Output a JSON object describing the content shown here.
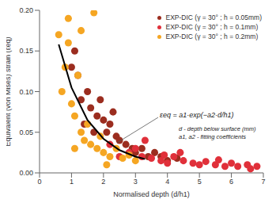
{
  "chart_data": {
    "type": "scatter",
    "x_label": "Normalised depth (d/h1)",
    "y_label": "Equivalent (von Mises) strain (εeq)",
    "xlim": [
      0,
      7
    ],
    "xticks": [
      0,
      1,
      2,
      3,
      4,
      5,
      6,
      7
    ],
    "ylim": [
      0,
      0.2
    ],
    "yticks": [
      {
        "value": 0,
        "label": "0.00"
      },
      {
        "value": 0.05,
        "label": "0.05"
      },
      {
        "value": 0.1,
        "label": "0.10"
      },
      {
        "value": 0.15,
        "label": "0.15"
      },
      {
        "value": 0.2,
        "label": "0.20"
      }
    ],
    "legend": "upper right",
    "annotations": [
      "εeq = a1·exp(−a2·d/h1)",
      "d - depth below surface (mm)",
      "a1, a2 - fitting coefficients"
    ],
    "series": [
      {
        "name": "EXP-DIC (γ = 30° ; h = 0.05mm)",
        "color": "#9b2d1f",
        "marker": "circle",
        "x": [
          1.0,
          1.2,
          1.3,
          1.5,
          1.6,
          1.4,
          1.8,
          2.0,
          2.1,
          2.2,
          2.4,
          2.5,
          1.1,
          1.7,
          2.7,
          2.9,
          3.0,
          3.2,
          3.4,
          3.6,
          3.8,
          4.0,
          4.3,
          2.3,
          1.9
        ],
        "values": [
          0.13,
          0.12,
          0.09,
          0.1,
          0.08,
          0.06,
          0.07,
          0.065,
          0.05,
          0.06,
          0.045,
          0.04,
          0.15,
          0.05,
          0.035,
          0.03,
          0.025,
          0.03,
          0.02,
          0.025,
          0.02,
          0.015,
          0.018,
          0.075,
          0.09
        ]
      },
      {
        "name": "EXP-DIC (γ = 30° ; h = 0.1mm)",
        "color": "#e0303a",
        "marker": "circle",
        "x": [
          2.5,
          2.8,
          3.0,
          3.2,
          3.5,
          3.8,
          4.0,
          4.2,
          4.5,
          4.8,
          5.0,
          5.2,
          5.5,
          5.8,
          6.0,
          6.2,
          6.5,
          6.8,
          2.2,
          3.3,
          4.4,
          5.6,
          6.6,
          3.9
        ],
        "values": [
          0.02,
          0.025,
          0.03,
          0.02,
          0.018,
          0.015,
          0.012,
          0.02,
          0.015,
          0.012,
          0.01,
          0.014,
          0.01,
          0.008,
          0.012,
          0.008,
          0.01,
          0.008,
          0.035,
          0.04,
          0.025,
          0.016,
          0.005,
          0.022
        ]
      },
      {
        "name": "EXP-DIC (γ = 30° ; h = 0.2mm)",
        "color": "#f5a623",
        "marker": "circle",
        "x": [
          0.6,
          0.8,
          0.7,
          0.9,
          1.0,
          1.1,
          1.2,
          1.3,
          1.4,
          1.5,
          1.6,
          1.8,
          1.9,
          2.0,
          2.2,
          2.4,
          2.6,
          2.8,
          3.0,
          1.7,
          1.3,
          0.9,
          2.1,
          1.1
        ],
        "values": [
          0.17,
          0.13,
          0.1,
          0.16,
          0.085,
          0.07,
          0.12,
          0.05,
          0.04,
          0.06,
          0.035,
          0.03,
          0.045,
          0.025,
          0.02,
          0.03,
          0.018,
          0.022,
          0.015,
          0.197,
          0.175,
          0.19,
          0.01,
          0.03
        ]
      },
      {
        "type": "line",
        "color": "#000000",
        "x": [
          0.6,
          1.0,
          1.5,
          2.0,
          2.5,
          3.0,
          3.3
        ],
        "values": [
          0.158,
          0.105,
          0.065,
          0.042,
          0.028,
          0.02,
          0.017
        ]
      }
    ]
  }
}
